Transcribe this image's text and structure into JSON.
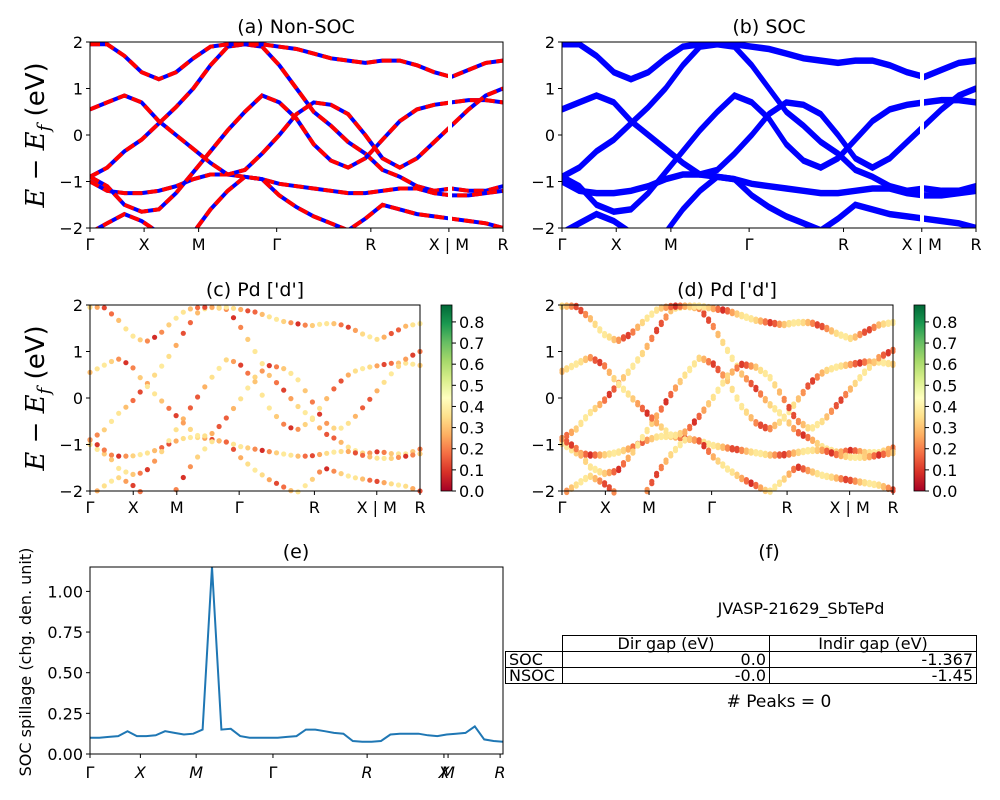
{
  "figure": {
    "ylabel_row1": "E − E",
    "ylabel_sub": "f",
    "ylabel_unit": " (eV)",
    "kpath": [
      "Γ",
      "X",
      "M",
      "Γ",
      "R",
      "X | M",
      "R"
    ],
    "kpath_italic": [
      "Γ",
      "X",
      "M",
      "Γ",
      "R",
      "X",
      "M",
      "R"
    ],
    "ylim": [
      -2,
      2
    ],
    "yticks": [
      "−2",
      "−1",
      "0",
      "1",
      "2"
    ]
  },
  "panels": {
    "a": {
      "title": "(a) Non-SOC"
    },
    "b": {
      "title": "(b) SOC"
    },
    "c": {
      "title": "(c)  Pd ['d']"
    },
    "d": {
      "title": "(d) Pd ['d']"
    },
    "e": {
      "title": "(e)",
      "ylabel": "SOC spillage (chg. den. unit)",
      "yticks": [
        "0.00",
        "0.25",
        "0.50",
        "0.75",
        "1.00"
      ]
    },
    "f": {
      "title": "(f)",
      "material": "JVASP-21629_SbTePd",
      "peaks": "# Peaks = 0"
    }
  },
  "colorbar": {
    "ticks": [
      "0.0",
      "0.1",
      "0.2",
      "0.3",
      "0.4",
      "0.5",
      "0.6",
      "0.7",
      "0.8"
    ],
    "colormap": "RdYlGn"
  },
  "colors": {
    "nonsoc_red": "#ff0000",
    "nonsoc_blue": "#0000ff",
    "soc_blue": "#0000ff",
    "spillage_line": "#1f77b4"
  },
  "table": {
    "headers": [
      "Dir gap (eV)",
      "Indir gap (eV)"
    ],
    "rows": [
      {
        "label": "SOC",
        "dir": "0.0",
        "indir": "-1.367"
      },
      {
        "label": "NSOC",
        "dir": "-0.0",
        "indir": "-1.45"
      }
    ]
  },
  "chart_data": [
    {
      "type": "line",
      "panel": "a",
      "title": "(a) Non-SOC",
      "ylabel": "E − E_f (eV)",
      "ylim": [
        -2,
        2
      ],
      "x_ticklabels": [
        "Γ",
        "X",
        "M",
        "Γ",
        "R",
        "X | M",
        "R"
      ],
      "bands": [
        [
          -0.9,
          -0.7,
          -0.35,
          -0.1,
          0.25,
          0.6,
          1.0,
          1.5,
          1.9,
          1.95,
          1.9,
          1.5,
          1.0,
          0.5,
          0.2,
          -0.15,
          -0.4,
          -0.75,
          -0.9,
          -1.1,
          -1.2,
          -1.15,
          -1.2,
          -1.2,
          -1.1
        ],
        [
          -1.0,
          -1.2,
          -1.25,
          -1.25,
          -1.2,
          -1.1,
          -0.95,
          -0.85,
          -0.85,
          -0.9,
          -0.95,
          -1.05,
          -1.1,
          -1.15,
          -1.2,
          -1.25,
          -1.25,
          -1.2,
          -1.15,
          -1.15,
          -1.25,
          -1.3,
          -1.3,
          -1.25,
          -1.2
        ],
        [
          -0.9,
          -1.1,
          -1.5,
          -1.65,
          -1.6,
          -1.25,
          -0.8,
          -0.35,
          0.1,
          0.5,
          0.85,
          0.7,
          0.35,
          -0.2,
          -0.55,
          -0.7,
          -0.5,
          -0.1,
          0.3,
          0.55,
          0.65,
          0.7,
          0.75,
          0.75,
          0.7
        ],
        [
          0.55,
          0.7,
          0.85,
          0.7,
          0.3,
          0.0,
          -0.3,
          -0.6,
          -0.85,
          -0.75,
          -0.4,
          0.0,
          0.45,
          0.7,
          0.65,
          0.45,
          0.0,
          -0.5,
          -0.7,
          -0.5,
          -0.15,
          0.2,
          0.55,
          0.85,
          1.0
        ],
        [
          1.95,
          1.95,
          1.7,
          1.35,
          1.2,
          1.35,
          1.65,
          1.9,
          1.95,
          1.95,
          1.95,
          1.9,
          1.85,
          1.75,
          1.65,
          1.6,
          1.55,
          1.6,
          1.6,
          1.5,
          1.35,
          1.25,
          1.4,
          1.55,
          1.6
        ],
        [
          -2.1,
          -1.9,
          -1.7,
          -1.85,
          -2.1,
          -2.2,
          -2.1,
          -1.6,
          -1.2,
          -0.9,
          -0.95,
          -1.3,
          -1.55,
          -1.75,
          -1.9,
          -2.05,
          -1.8,
          -1.5,
          -1.6,
          -1.7,
          -1.75,
          -1.8,
          -1.85,
          -1.9,
          -2.0
        ]
      ]
    },
    {
      "type": "line",
      "panel": "b",
      "title": "(b) SOC",
      "ylabel": "",
      "ylim": [
        -2,
        2
      ],
      "x_ticklabels": [
        "Γ",
        "X",
        "M",
        "Γ",
        "R",
        "X | M",
        "R"
      ],
      "bands": [
        [
          -0.9,
          -0.7,
          -0.35,
          -0.1,
          0.25,
          0.6,
          1.0,
          1.5,
          1.9,
          1.95,
          1.9,
          1.5,
          1.0,
          0.5,
          0.2,
          -0.15,
          -0.4,
          -0.75,
          -0.9,
          -1.1,
          -1.2,
          -1.15,
          -1.2,
          -1.2,
          -1.1
        ],
        [
          -1.0,
          -1.2,
          -1.25,
          -1.25,
          -1.2,
          -1.1,
          -0.95,
          -0.85,
          -0.85,
          -0.9,
          -0.95,
          -1.05,
          -1.1,
          -1.15,
          -1.2,
          -1.25,
          -1.25,
          -1.2,
          -1.15,
          -1.15,
          -1.25,
          -1.3,
          -1.3,
          -1.25,
          -1.2
        ],
        [
          -0.9,
          -1.1,
          -1.5,
          -1.65,
          -1.6,
          -1.25,
          -0.8,
          -0.35,
          0.1,
          0.5,
          0.85,
          0.7,
          0.35,
          -0.2,
          -0.55,
          -0.7,
          -0.5,
          -0.1,
          0.3,
          0.55,
          0.65,
          0.7,
          0.75,
          0.75,
          0.7
        ],
        [
          0.55,
          0.7,
          0.85,
          0.7,
          0.3,
          0.0,
          -0.3,
          -0.6,
          -0.85,
          -0.75,
          -0.4,
          0.0,
          0.45,
          0.7,
          0.65,
          0.45,
          0.0,
          -0.5,
          -0.7,
          -0.5,
          -0.15,
          0.2,
          0.55,
          0.85,
          1.0
        ],
        [
          1.95,
          1.95,
          1.7,
          1.35,
          1.2,
          1.35,
          1.65,
          1.9,
          1.95,
          1.95,
          1.95,
          1.9,
          1.85,
          1.75,
          1.65,
          1.6,
          1.55,
          1.6,
          1.6,
          1.5,
          1.35,
          1.25,
          1.4,
          1.55,
          1.6
        ],
        [
          -2.1,
          -1.9,
          -1.7,
          -1.85,
          -2.1,
          -2.2,
          -2.1,
          -1.6,
          -1.2,
          -0.9,
          -0.95,
          -1.3,
          -1.55,
          -1.75,
          -1.9,
          -2.05,
          -1.8,
          -1.5,
          -1.6,
          -1.7,
          -1.75,
          -1.8,
          -1.85,
          -1.9,
          -2.0
        ]
      ]
    },
    {
      "type": "scatter",
      "panel": "c",
      "title": "(c)  Pd ['d']",
      "ylim": [
        -2,
        2
      ],
      "clim": [
        0,
        0.88
      ],
      "x_ticklabels": [
        "Γ",
        "X",
        "M",
        "Γ",
        "R",
        "X | M",
        "R"
      ]
    },
    {
      "type": "scatter",
      "panel": "d",
      "title": "(d) Pd ['d']",
      "ylim": [
        -2,
        2
      ],
      "clim": [
        0,
        0.88
      ],
      "x_ticklabels": [
        "Γ",
        "X",
        "M",
        "Γ",
        "R",
        "X | M",
        "R"
      ]
    },
    {
      "type": "line",
      "panel": "e",
      "title": "(e)",
      "ylabel": "SOC spillage (chg. den. unit)",
      "ylim": [
        0,
        1.15
      ],
      "x_ticklabels": [
        "Γ",
        "X",
        "M",
        "Γ",
        "R",
        "X",
        "M",
        "R"
      ],
      "values": [
        0.1,
        0.1,
        0.105,
        0.11,
        0.14,
        0.11,
        0.11,
        0.115,
        0.14,
        0.13,
        0.12,
        0.125,
        0.15,
        1.15,
        0.15,
        0.155,
        0.11,
        0.1,
        0.1,
        0.1,
        0.1,
        0.105,
        0.11,
        0.15,
        0.15,
        0.14,
        0.13,
        0.125,
        0.08,
        0.075,
        0.075,
        0.08,
        0.12,
        0.125,
        0.125,
        0.125,
        0.115,
        0.11,
        0.12,
        0.125,
        0.13,
        0.17,
        0.09,
        0.08,
        0.075
      ]
    }
  ]
}
